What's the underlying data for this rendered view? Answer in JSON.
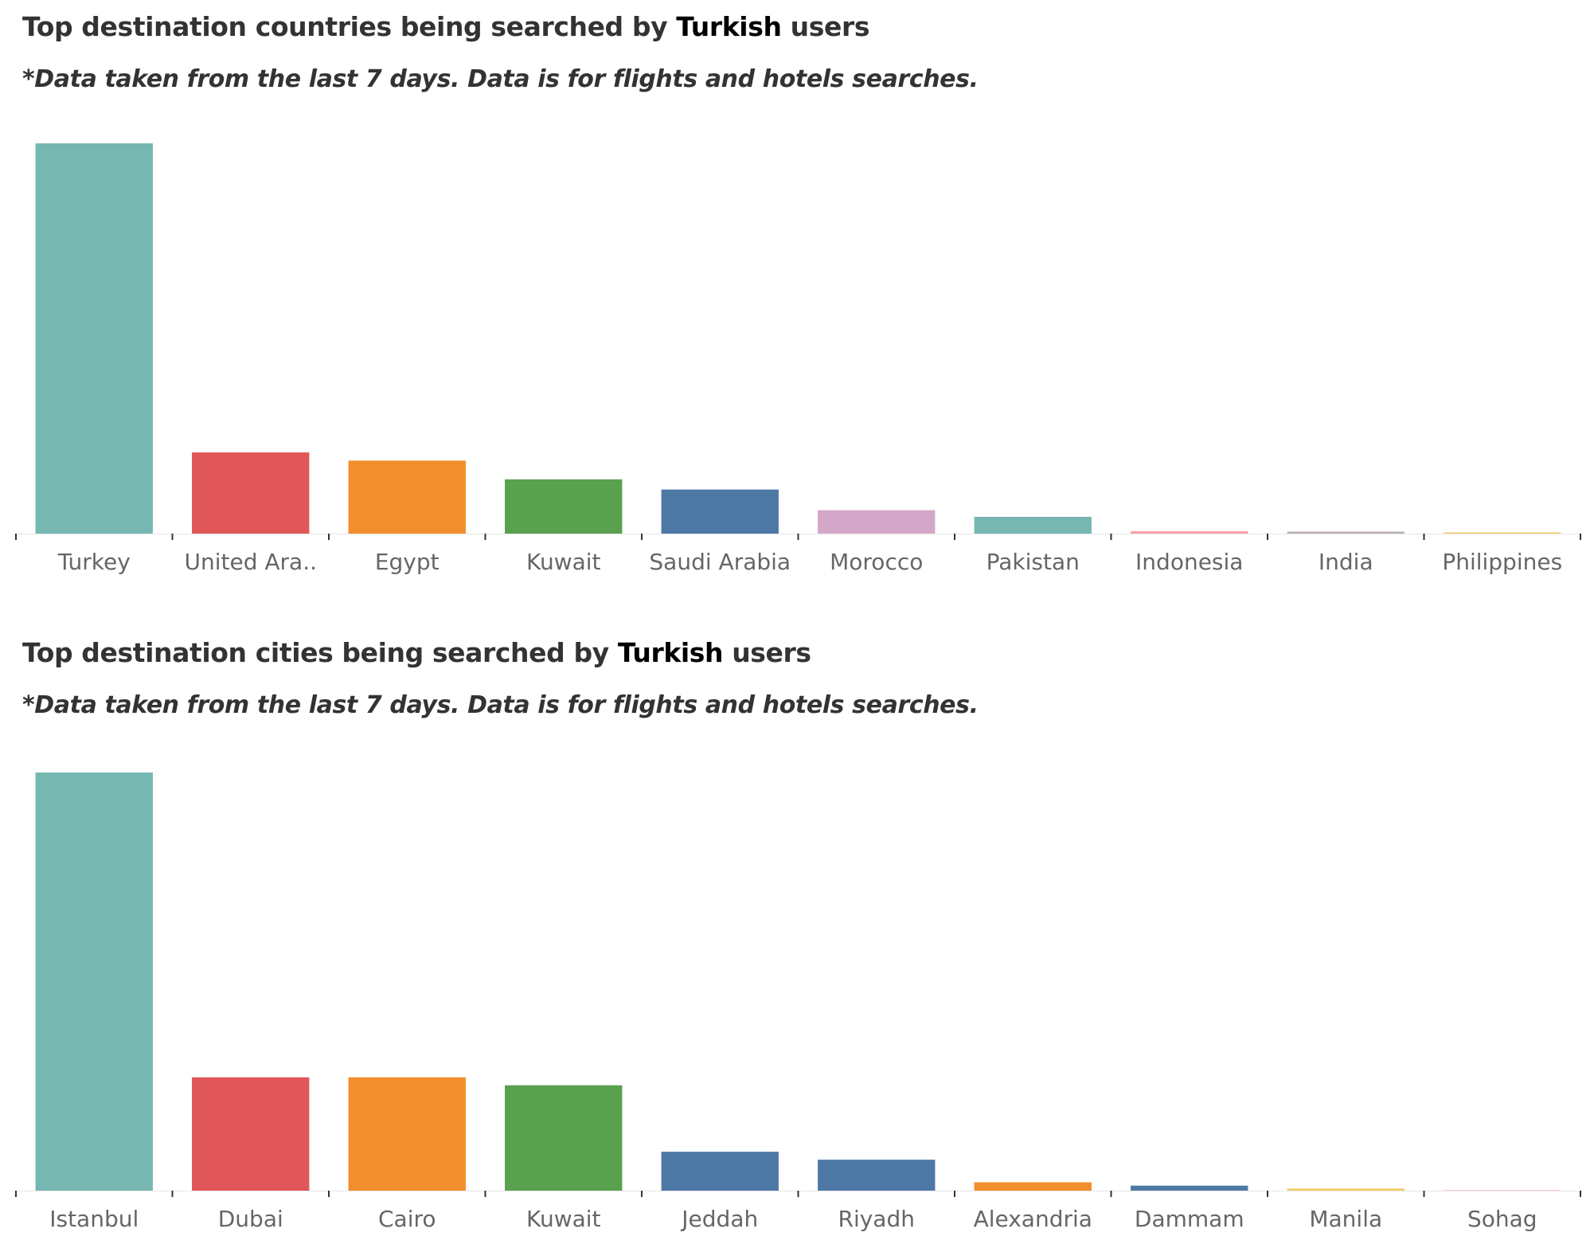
{
  "charts": [
    {
      "title_prefix": "Top destination countries being searched by ",
      "title_highlight": "Turkish",
      "title_suffix": " users",
      "subtitle": "*Data taken from the last 7 days. Data is for flights and hotels searches."
    },
    {
      "title_prefix": "Top destination cities being searched by ",
      "title_highlight": "Turkish",
      "title_suffix": " users",
      "subtitle": "*Data taken from the last 7 days. Data is for flights and hotels searches."
    }
  ],
  "chart_data": [
    {
      "type": "bar",
      "title": "Top destination countries being searched by Turkish users",
      "subtitle": "*Data taken from the last 7 days. Data is for flights and hotels searches.",
      "categories": [
        "Turkey",
        "United Ara..",
        "Egypt",
        "Kuwait",
        "Saudi Arabia",
        "Morocco",
        "Pakistan",
        "Indonesia",
        "India",
        "Philippines"
      ],
      "values": [
        100,
        20.8,
        18.7,
        13.9,
        11.3,
        6.0,
        4.3,
        0.6,
        0.5,
        0.3
      ],
      "colors": [
        "#76B7B2",
        "#E15759",
        "#F28E2B",
        "#59A14F",
        "#4E79A7",
        "#D4A6C8",
        "#76B7B2",
        "#FF9DA7",
        "#BAB0AC",
        "#F1CE63"
      ],
      "ylim": [
        0,
        100
      ],
      "grid": false,
      "y_axis_shown": false
    },
    {
      "type": "bar",
      "title": "Top destination cities being searched by Turkish users",
      "subtitle": "*Data taken from the last 7 days. Data is for flights and hotels searches.",
      "categories": [
        "Istanbul",
        "Dubai",
        "Cairo",
        "Kuwait",
        "Jeddah",
        "Riyadh",
        "Alexandria",
        "Dammam",
        "Manila",
        "Sohag"
      ],
      "values": [
        100,
        27.1,
        27.1,
        25.2,
        9.3,
        7.4,
        2.0,
        1.2,
        0.5,
        0.1
      ],
      "colors": [
        "#76B7B2",
        "#E15759",
        "#F28E2B",
        "#59A14F",
        "#4E79A7",
        "#4E79A7",
        "#F28E2B",
        "#4E79A7",
        "#F1CE63",
        "#FF9DA7"
      ],
      "ylim": [
        0,
        100
      ],
      "grid": false,
      "y_axis_shown": false
    }
  ]
}
